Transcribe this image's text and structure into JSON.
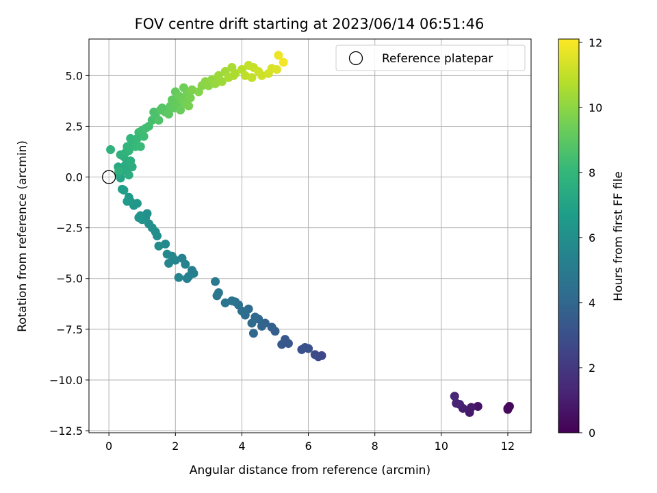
{
  "chart_data": {
    "type": "scatter",
    "title": "FOV centre drift starting at 2023/06/14 06:51:46",
    "xlabel": "Angular distance from reference (arcmin)",
    "ylabel": "Rotation from reference (arcmin)",
    "xlim": [
      -0.6,
      12.7
    ],
    "ylim": [
      -12.6,
      6.8
    ],
    "xticks": [
      0,
      2,
      4,
      6,
      8,
      10,
      12
    ],
    "yticks": [
      -12.5,
      -10.0,
      -7.5,
      -5.0,
      -2.5,
      0.0,
      2.5,
      5.0
    ],
    "xtick_labels": [
      "0",
      "2",
      "4",
      "6",
      "8",
      "10",
      "12"
    ],
    "ytick_labels": [
      "−12.5",
      "−10.0",
      "−7.5",
      "−5.0",
      "−2.5",
      "0.0",
      "2.5",
      "5.0"
    ],
    "grid": true,
    "legend": {
      "position": "top-right",
      "entries": [
        "Reference platepar"
      ]
    },
    "reference_point": {
      "x": 0,
      "y": 0
    },
    "colorbar": {
      "label": "Hours from first FF file",
      "range": [
        0,
        12.1
      ],
      "ticks": [
        0,
        2,
        4,
        6,
        8,
        10,
        12
      ],
      "tick_labels": [
        "0",
        "2",
        "4",
        "6",
        "8",
        "10",
        "12"
      ],
      "colormap": "viridis",
      "stops": [
        "#440154",
        "#482878",
        "#3e4989",
        "#31688e",
        "#26828e",
        "#1f9e89",
        "#35b779",
        "#6ece58",
        "#b5de2b",
        "#fde725"
      ]
    },
    "series": [
      {
        "points": [
          {
            "x": 12.0,
            "y": -11.4,
            "t": 0.1
          },
          {
            "x": 12.05,
            "y": -11.3,
            "t": 0.2
          },
          {
            "x": 12.0,
            "y": -11.45,
            "t": 0.3
          },
          {
            "x": 11.1,
            "y": -11.3,
            "t": 0.6
          },
          {
            "x": 10.85,
            "y": -11.6,
            "t": 0.8
          },
          {
            "x": 10.9,
            "y": -11.35,
            "t": 0.9
          },
          {
            "x": 10.65,
            "y": -11.4,
            "t": 1.0
          },
          {
            "x": 10.55,
            "y": -11.2,
            "t": 1.1
          },
          {
            "x": 10.45,
            "y": -11.15,
            "t": 1.2
          },
          {
            "x": 10.4,
            "y": -10.8,
            "t": 1.3
          },
          {
            "x": 6.4,
            "y": -8.8,
            "t": 2.6
          },
          {
            "x": 6.3,
            "y": -8.85,
            "t": 2.7
          },
          {
            "x": 6.2,
            "y": -8.75,
            "t": 2.8
          },
          {
            "x": 6.0,
            "y": -8.45,
            "t": 3.0
          },
          {
            "x": 5.9,
            "y": -8.4,
            "t": 3.1
          },
          {
            "x": 5.8,
            "y": -8.5,
            "t": 3.1
          },
          {
            "x": 5.4,
            "y": -8.2,
            "t": 3.3
          },
          {
            "x": 5.3,
            "y": -8.0,
            "t": 3.4
          },
          {
            "x": 5.2,
            "y": -8.25,
            "t": 3.4
          },
          {
            "x": 5.0,
            "y": -7.6,
            "t": 3.6
          },
          {
            "x": 4.9,
            "y": -7.4,
            "t": 3.7
          },
          {
            "x": 4.7,
            "y": -7.2,
            "t": 3.8
          },
          {
            "x": 4.6,
            "y": -7.35,
            "t": 3.9
          },
          {
            "x": 4.5,
            "y": -7.0,
            "t": 4.0
          },
          {
            "x": 4.4,
            "y": -6.9,
            "t": 4.1
          },
          {
            "x": 4.35,
            "y": -7.7,
            "t": 4.1
          },
          {
            "x": 4.3,
            "y": -7.2,
            "t": 4.2
          },
          {
            "x": 4.2,
            "y": -6.5,
            "t": 4.3
          },
          {
            "x": 4.1,
            "y": -6.8,
            "t": 4.3
          },
          {
            "x": 4.0,
            "y": -6.6,
            "t": 4.4
          },
          {
            "x": 3.9,
            "y": -6.3,
            "t": 4.5
          },
          {
            "x": 3.8,
            "y": -6.15,
            "t": 4.5
          },
          {
            "x": 3.7,
            "y": -6.1,
            "t": 4.6
          },
          {
            "x": 3.5,
            "y": -6.2,
            "t": 4.7
          },
          {
            "x": 3.3,
            "y": -5.7,
            "t": 4.8
          },
          {
            "x": 3.25,
            "y": -5.85,
            "t": 4.8
          },
          {
            "x": 3.2,
            "y": -5.15,
            "t": 4.9
          },
          {
            "x": 2.55,
            "y": -4.75,
            "t": 5.2
          },
          {
            "x": 2.5,
            "y": -4.6,
            "t": 5.2
          },
          {
            "x": 2.4,
            "y": -4.9,
            "t": 5.3
          },
          {
            "x": 2.35,
            "y": -5.0,
            "t": 5.3
          },
          {
            "x": 2.3,
            "y": -4.3,
            "t": 5.4
          },
          {
            "x": 2.2,
            "y": -4.0,
            "t": 5.4
          },
          {
            "x": 2.1,
            "y": -4.95,
            "t": 5.5
          },
          {
            "x": 2.0,
            "y": -4.1,
            "t": 5.5
          },
          {
            "x": 1.9,
            "y": -3.9,
            "t": 5.6
          },
          {
            "x": 1.8,
            "y": -4.25,
            "t": 5.6
          },
          {
            "x": 1.75,
            "y": -3.8,
            "t": 5.7
          },
          {
            "x": 1.7,
            "y": -3.3,
            "t": 5.7
          },
          {
            "x": 1.5,
            "y": -3.4,
            "t": 5.8
          },
          {
            "x": 1.45,
            "y": -2.9,
            "t": 5.9
          },
          {
            "x": 1.4,
            "y": -2.7,
            "t": 5.9
          },
          {
            "x": 1.3,
            "y": -2.5,
            "t": 6.0
          },
          {
            "x": 1.2,
            "y": -2.3,
            "t": 6.0
          },
          {
            "x": 1.15,
            "y": -1.8,
            "t": 6.1
          },
          {
            "x": 1.1,
            "y": -2.0,
            "t": 6.1
          },
          {
            "x": 1.0,
            "y": -2.1,
            "t": 6.2
          },
          {
            "x": 0.95,
            "y": -1.9,
            "t": 6.2
          },
          {
            "x": 0.9,
            "y": -2.0,
            "t": 6.3
          },
          {
            "x": 0.85,
            "y": -1.3,
            "t": 6.4
          },
          {
            "x": 0.75,
            "y": -1.4,
            "t": 6.4
          },
          {
            "x": 0.65,
            "y": -1.2,
            "t": 6.5
          },
          {
            "x": 0.6,
            "y": -1.0,
            "t": 6.5
          },
          {
            "x": 0.55,
            "y": -1.2,
            "t": 6.6
          },
          {
            "x": 0.45,
            "y": -0.65,
            "t": 6.7
          },
          {
            "x": 0.4,
            "y": -0.6,
            "t": 6.7
          },
          {
            "x": 0.35,
            "y": -0.05,
            "t": 7.1
          },
          {
            "x": 0.3,
            "y": 0.2,
            "t": 7.2
          },
          {
            "x": 0.28,
            "y": 0.5,
            "t": 7.3
          },
          {
            "x": 0.4,
            "y": 0.3,
            "t": 7.3
          },
          {
            "x": 0.5,
            "y": 0.6,
            "t": 7.4
          },
          {
            "x": 0.55,
            "y": 0.4,
            "t": 7.4
          },
          {
            "x": 0.6,
            "y": 0.1,
            "t": 7.5
          },
          {
            "x": 0.7,
            "y": 0.5,
            "t": 7.5
          },
          {
            "x": 0.65,
            "y": 0.8,
            "t": 7.6
          },
          {
            "x": 0.45,
            "y": 1.0,
            "t": 7.6
          },
          {
            "x": 0.35,
            "y": 1.1,
            "t": 7.7
          },
          {
            "x": 0.3,
            "y": 0.3,
            "t": 7.7
          },
          {
            "x": 0.05,
            "y": 1.35,
            "t": 7.8
          },
          {
            "x": 0.5,
            "y": 1.2,
            "t": 7.8
          },
          {
            "x": 0.55,
            "y": 1.5,
            "t": 7.9
          },
          {
            "x": 0.6,
            "y": 1.3,
            "t": 7.9
          },
          {
            "x": 0.65,
            "y": 1.9,
            "t": 8.0
          },
          {
            "x": 0.75,
            "y": 1.7,
            "t": 8.0
          },
          {
            "x": 0.8,
            "y": 1.5,
            "t": 8.1
          },
          {
            "x": 0.85,
            "y": 1.9,
            "t": 8.1
          },
          {
            "x": 0.9,
            "y": 2.2,
            "t": 8.2
          },
          {
            "x": 0.95,
            "y": 1.5,
            "t": 8.2
          },
          {
            "x": 1.0,
            "y": 2.3,
            "t": 8.3
          },
          {
            "x": 1.05,
            "y": 2.0,
            "t": 8.3
          },
          {
            "x": 1.1,
            "y": 2.4,
            "t": 8.4
          },
          {
            "x": 1.2,
            "y": 2.5,
            "t": 8.4
          },
          {
            "x": 1.3,
            "y": 2.8,
            "t": 8.5
          },
          {
            "x": 1.35,
            "y": 3.2,
            "t": 8.6
          },
          {
            "x": 1.4,
            "y": 3.0,
            "t": 8.6
          },
          {
            "x": 1.5,
            "y": 2.8,
            "t": 8.7
          },
          {
            "x": 1.55,
            "y": 3.3,
            "t": 8.8
          },
          {
            "x": 1.6,
            "y": 3.4,
            "t": 8.8
          },
          {
            "x": 1.7,
            "y": 3.2,
            "t": 8.9
          },
          {
            "x": 1.8,
            "y": 3.1,
            "t": 9.0
          },
          {
            "x": 1.85,
            "y": 3.5,
            "t": 9.0
          },
          {
            "x": 1.9,
            "y": 3.8,
            "t": 9.1
          },
          {
            "x": 1.95,
            "y": 3.4,
            "t": 9.1
          },
          {
            "x": 2.0,
            "y": 4.2,
            "t": 9.2
          },
          {
            "x": 2.05,
            "y": 3.6,
            "t": 9.2
          },
          {
            "x": 2.1,
            "y": 4.0,
            "t": 9.3
          },
          {
            "x": 2.15,
            "y": 3.3,
            "t": 9.3
          },
          {
            "x": 2.2,
            "y": 3.8,
            "t": 9.4
          },
          {
            "x": 2.25,
            "y": 4.4,
            "t": 9.4
          },
          {
            "x": 2.3,
            "y": 3.6,
            "t": 9.5
          },
          {
            "x": 2.35,
            "y": 4.1,
            "t": 9.5
          },
          {
            "x": 2.4,
            "y": 3.5,
            "t": 9.6
          },
          {
            "x": 2.45,
            "y": 3.9,
            "t": 9.6
          },
          {
            "x": 2.5,
            "y": 4.3,
            "t": 9.7
          },
          {
            "x": 2.7,
            "y": 4.2,
            "t": 9.8
          },
          {
            "x": 2.8,
            "y": 4.5,
            "t": 9.9
          },
          {
            "x": 2.9,
            "y": 4.7,
            "t": 10.0
          },
          {
            "x": 3.0,
            "y": 4.5,
            "t": 10.0
          },
          {
            "x": 3.1,
            "y": 4.8,
            "t": 10.1
          },
          {
            "x": 3.2,
            "y": 4.6,
            "t": 10.2
          },
          {
            "x": 3.3,
            "y": 5.0,
            "t": 10.3
          },
          {
            "x": 3.4,
            "y": 4.7,
            "t": 10.3
          },
          {
            "x": 3.5,
            "y": 5.2,
            "t": 10.4
          },
          {
            "x": 3.6,
            "y": 4.9,
            "t": 10.5
          },
          {
            "x": 3.7,
            "y": 5.4,
            "t": 10.5
          },
          {
            "x": 3.75,
            "y": 5.0,
            "t": 10.6
          },
          {
            "x": 3.8,
            "y": 5.1,
            "t": 10.6
          },
          {
            "x": 4.0,
            "y": 5.3,
            "t": 10.8
          },
          {
            "x": 4.1,
            "y": 5.0,
            "t": 10.9
          },
          {
            "x": 4.2,
            "y": 5.5,
            "t": 11.0
          },
          {
            "x": 4.3,
            "y": 4.9,
            "t": 11.0
          },
          {
            "x": 4.35,
            "y": 5.4,
            "t": 11.1
          },
          {
            "x": 4.5,
            "y": 5.2,
            "t": 11.2
          },
          {
            "x": 4.6,
            "y": 5.0,
            "t": 11.2
          },
          {
            "x": 4.8,
            "y": 5.1,
            "t": 11.3
          },
          {
            "x": 4.9,
            "y": 5.35,
            "t": 11.4
          },
          {
            "x": 5.05,
            "y": 5.3,
            "t": 11.5
          },
          {
            "x": 5.1,
            "y": 6.0,
            "t": 11.8
          },
          {
            "x": 5.25,
            "y": 5.65,
            "t": 11.9
          }
        ]
      }
    ]
  }
}
